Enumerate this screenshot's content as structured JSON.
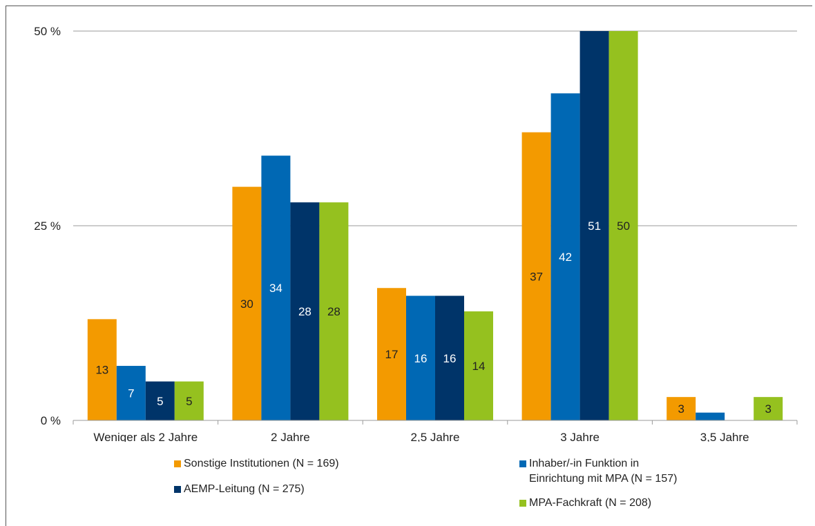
{
  "chart_data": {
    "type": "bar",
    "title": "",
    "xlabel": "",
    "ylabel": "",
    "ylim": [
      0,
      50
    ],
    "yticks": [
      0,
      25,
      50
    ],
    "ytick_labels": [
      "0 %",
      "25 %",
      "50 %"
    ],
    "grid": true,
    "legend_position": "bottom",
    "categories": [
      "Weniger als 2 Jahre",
      "2 Jahre",
      "2,5 Jahre",
      "3 Jahre",
      "3,5 Jahre"
    ],
    "series": [
      {
        "name": "Sonstige Institutionen (N = 169)",
        "color": "#F39A00",
        "label_color": "#222222",
        "values": [
          13,
          30,
          17,
          37,
          3
        ]
      },
      {
        "name": "Inhaber/-in Funktion in\nEinrichtung mit MPA (N = 157)",
        "color": "#0068B4",
        "label_color": "#ffffff",
        "values": [
          7,
          34,
          16,
          42,
          1
        ]
      },
      {
        "name": "AEMP-Leitung (N = 275)",
        "color": "#003469",
        "label_color": "#ffffff",
        "values": [
          5,
          28,
          16,
          51,
          0
        ]
      },
      {
        "name": "MPA-Fachkraft (N = 208)",
        "color": "#95C11F",
        "label_color": "#222222",
        "values": [
          5,
          28,
          14,
          50,
          3
        ]
      }
    ],
    "data_labels": [
      [
        "13",
        "30",
        "17",
        "37",
        "3"
      ],
      [
        "7",
        "34",
        "16",
        "42",
        ""
      ],
      [
        "5",
        "28",
        "16",
        "51",
        ""
      ],
      [
        "5",
        "28",
        "14",
        "50",
        "3"
      ]
    ]
  }
}
